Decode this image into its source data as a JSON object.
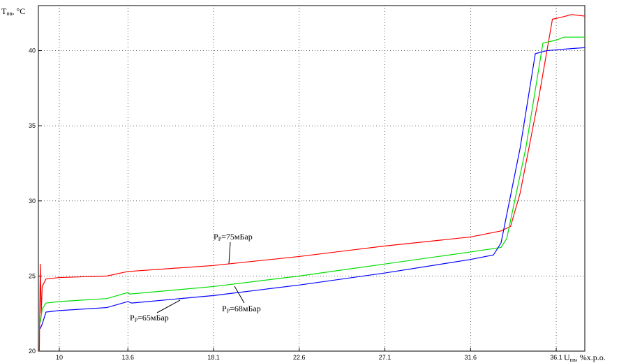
{
  "chart_data": {
    "type": "line",
    "y_label": {
      "base": "T",
      "sub": "пв",
      "rest": ", °C"
    },
    "x_label": {
      "base": "U",
      "sub": "пв",
      "rest": ", %х.р.о."
    },
    "xlim": [
      8.9,
      37.6
    ],
    "ylim": [
      20,
      43
    ],
    "xticks": [
      10,
      13.6,
      18.1,
      22.6,
      27.1,
      31.6,
      36.1
    ],
    "yticks": [
      20,
      25,
      30,
      35,
      40
    ],
    "grid": true,
    "series": [
      {
        "name": "75",
        "color": "#ff0000",
        "x": [
          8.95,
          9.0,
          9.05,
          9.1,
          9.3,
          10,
          12.5,
          13.6,
          18.1,
          22.6,
          27.1,
          31.6,
          33.2,
          33.7,
          34.2,
          35.2,
          35.9,
          36.3,
          36.9,
          37.6
        ],
        "values": [
          20,
          25.8,
          22.5,
          24.3,
          24.8,
          24.9,
          25.0,
          25.3,
          25.7,
          26.3,
          27.0,
          27.6,
          28.0,
          28.3,
          30.5,
          37.0,
          42.1,
          42.2,
          42.4,
          42.3
        ]
      },
      {
        "name": "68",
        "color": "#00dd00",
        "x": [
          9.0,
          9.1,
          9.3,
          10,
          12.5,
          13.6,
          13.7,
          18.1,
          22.6,
          27.1,
          31.6,
          33.2,
          33.5,
          34.5,
          35.4,
          36.1,
          36.5,
          37.6
        ],
        "values": [
          21.9,
          22.8,
          23.2,
          23.3,
          23.5,
          23.9,
          23.8,
          24.3,
          25.0,
          25.8,
          26.6,
          26.9,
          27.5,
          33.5,
          40.5,
          40.7,
          40.9,
          40.9
        ]
      },
      {
        "name": "65",
        "color": "#0000ff",
        "x": [
          9.0,
          9.1,
          9.3,
          10,
          12.5,
          13.6,
          13.8,
          18.1,
          22.6,
          27.1,
          31.6,
          32.8,
          33.2,
          34.2,
          35.0,
          35.6,
          36.5,
          37.6
        ],
        "values": [
          21.5,
          21.8,
          22.6,
          22.7,
          22.9,
          23.3,
          23.2,
          23.7,
          24.4,
          25.2,
          26.1,
          26.4,
          27.2,
          33.5,
          39.8,
          40.0,
          40.1,
          40.2
        ]
      }
    ],
    "annotations": [
      {
        "base": "P",
        "sub": "Р",
        "rest": "=75мБар"
      },
      {
        "base": "P",
        "sub": "Р",
        "rest": "=65мБар"
      },
      {
        "base": "P",
        "sub": "Р",
        "rest": "=68мБар"
      }
    ]
  }
}
